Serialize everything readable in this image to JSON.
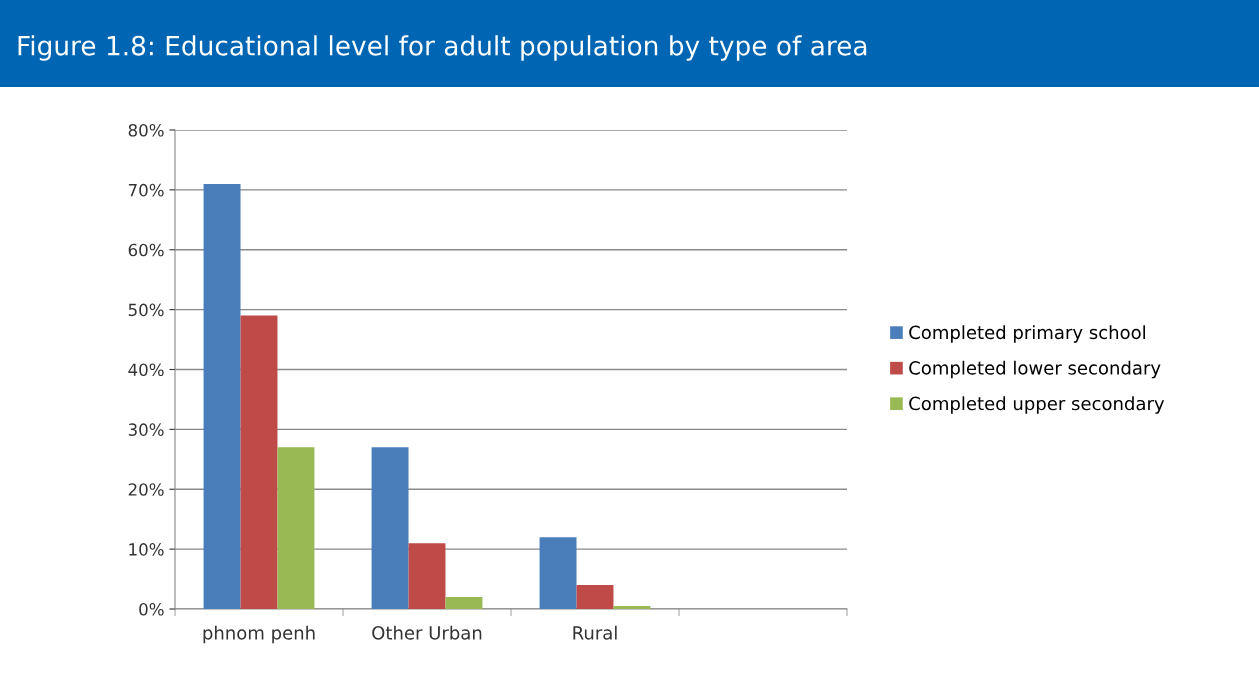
{
  "chart_data": {
    "type": "bar",
    "title": "Figure 1.8: Educational level for adult population by type of area",
    "categories": [
      "phnom penh",
      "Other Urban",
      "Rural",
      null
    ],
    "series": [
      {
        "name": "Completed primary school",
        "color": "#4a7ebb",
        "values": [
          71,
          27,
          12,
          null
        ]
      },
      {
        "name": "Completed lower secondary",
        "color": "#be4b48",
        "values": [
          49,
          11,
          4,
          null
        ]
      },
      {
        "name": "Completed upper secondary",
        "color": "#98b954",
        "values": [
          27,
          2,
          0.5,
          null
        ]
      }
    ],
    "ylim": [
      0,
      80
    ],
    "yticks": [
      {
        "value": 0,
        "label": "0%"
      },
      {
        "value": 10,
        "label": "10%"
      },
      {
        "value": 20,
        "label": "20%"
      },
      {
        "value": 30,
        "label": "30%"
      },
      {
        "value": 40,
        "label": "40%"
      },
      {
        "value": 50,
        "label": "50%"
      },
      {
        "value": 60,
        "label": "60%"
      },
      {
        "value": 70,
        "label": "70%"
      },
      {
        "value": 80,
        "label": "80%"
      }
    ],
    "grid": "y",
    "legend": "right"
  }
}
